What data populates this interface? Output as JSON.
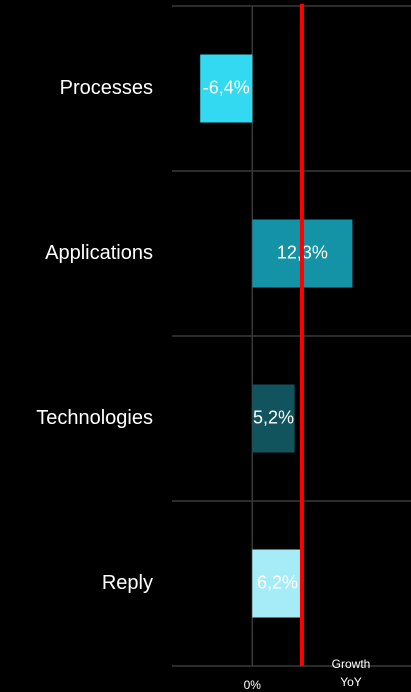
{
  "chart_data": {
    "type": "bar",
    "orientation": "horizontal",
    "categories": [
      "Processes",
      "Applications",
      "Technologies",
      "Reply"
    ],
    "values": [
      -6.4,
      12.3,
      5.2,
      6.2
    ],
    "data_labels": [
      "-6,4%",
      "12,3%",
      "5,2%",
      "6,2%"
    ],
    "bar_colors": [
      "#33d9f0",
      "#1493a6",
      "#12545e",
      "#a6ecf7"
    ],
    "x_tick_labels": [
      "0%"
    ],
    "reference_line": {
      "label_line1": "Growth",
      "label_line2": "YoY",
      "value": 6.1,
      "color": "#ff0000"
    },
    "xlim": [
      -31,
      19.5
    ],
    "grid": true,
    "legend": "none",
    "background": "#000000",
    "gridline_color": "#3a3a3a",
    "text_color": "#ffffff"
  }
}
